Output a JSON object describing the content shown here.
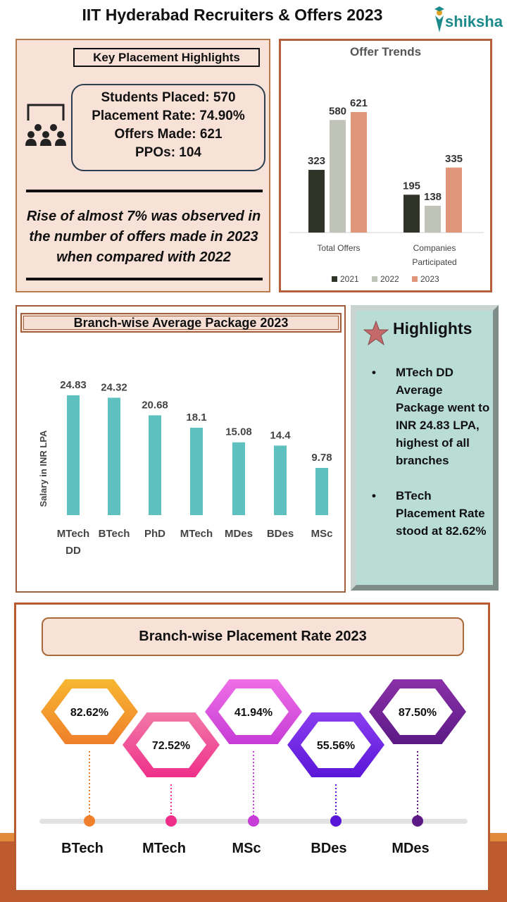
{
  "title": "IIT Hyderabad Recruiters & Offers 2023",
  "logo": {
    "text": "shiksha",
    "color": "#1d8a8a"
  },
  "key_highlights": {
    "heading": "Key Placement Highlights",
    "icon": "audience-presentation-icon",
    "stats": [
      "Students Placed: 570",
      "Placement Rate: 74.90%",
      "Offers Made: 621",
      "PPOs: 104"
    ],
    "note": "Rise of almost 7% was observed in the number of offers made in 2023 when compared with 2022"
  },
  "highlights": {
    "icon": "star-icon",
    "title": "Highlights",
    "items": [
      "MTech DD Average Package went to INR 24.83 LPA, highest of all branches",
      "BTech Placement Rate stood at 82.62%"
    ]
  },
  "chart_data": [
    {
      "type": "bar",
      "title": "Offer Trends",
      "categories": [
        "Total Offers",
        "Companies Participated"
      ],
      "series": [
        {
          "name": "2021",
          "values": [
            323,
            195
          ],
          "color": "#2f3328"
        },
        {
          "name": "2022",
          "values": [
            580,
            138
          ],
          "color": "#c0c4b8"
        },
        {
          "name": "2023",
          "values": [
            621,
            335
          ],
          "color": "#e0967a"
        }
      ],
      "legend": "bottom",
      "grid": false
    },
    {
      "type": "bar",
      "title": "Branch-wise Average Package 2023",
      "ylabel": "Salary in INR LPA",
      "categories": [
        "MTech DD",
        "BTech",
        "PhD",
        "MTech",
        "MDes",
        "BDes",
        "MSc"
      ],
      "values": [
        24.83,
        24.32,
        20.68,
        18.1,
        15.08,
        14.4,
        9.78
      ],
      "labels": [
        "24.83",
        "24.32",
        "20.68",
        "18.1",
        "15.08",
        "14.4",
        "9.78"
      ],
      "color": "#5fc0c0",
      "grid": false
    },
    {
      "type": "table",
      "title": "Branch-wise Placement Rate 2023",
      "categories": [
        "BTech",
        "MTech",
        "MSc",
        "BDes",
        "MDes"
      ],
      "labels": [
        "82.62%",
        "72.52%",
        "41.94%",
        "55.56%",
        "87.50%"
      ],
      "values": [
        82.62,
        72.52,
        41.94,
        55.56,
        87.5
      ],
      "colors": [
        [
          "#f7b731",
          "#ef7f2a"
        ],
        [
          "#f27aa8",
          "#ee2f8a"
        ],
        [
          "#ef6fe6",
          "#c63cd6"
        ],
        [
          "#8b3ef0",
          "#5a16d8"
        ],
        [
          "#8a30a8",
          "#5c1a86"
        ]
      ]
    }
  ]
}
